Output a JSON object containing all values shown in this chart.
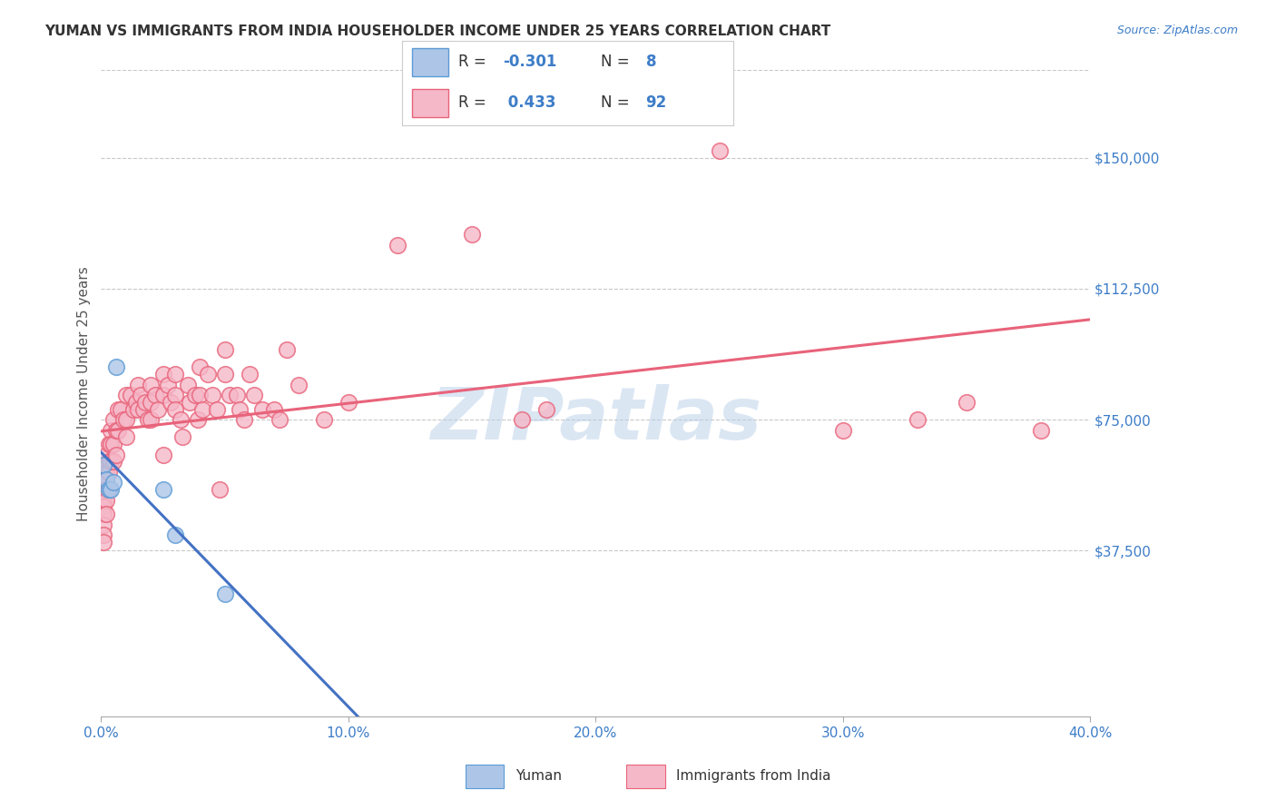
{
  "title": "YUMAN VS IMMIGRANTS FROM INDIA HOUSEHOLDER INCOME UNDER 25 YEARS CORRELATION CHART",
  "source": "Source: ZipAtlas.com",
  "ylabel": "Householder Income Under 25 years",
  "xlim": [
    0.0,
    0.4
  ],
  "ylim": [
    -10000,
    175000
  ],
  "plot_ylim": [
    0,
    175000
  ],
  "xtick_labels": [
    "0.0%",
    "10.0%",
    "20.0%",
    "30.0%",
    "40.0%"
  ],
  "xtick_vals": [
    0.0,
    0.1,
    0.2,
    0.3,
    0.4
  ],
  "ytick_labels": [
    "$37,500",
    "$75,000",
    "$112,500",
    "$150,000"
  ],
  "ytick_vals": [
    37500,
    75000,
    112500,
    150000
  ],
  "legend_labels": [
    "Yuman",
    "Immigrants from India"
  ],
  "yuman_color": "#adc6e8",
  "india_color": "#f5b8c8",
  "yuman_edge_color": "#5b9bd5",
  "india_edge_color": "#e8637a",
  "yuman_line_color": "#4472c4",
  "india_line_color": "#e8637a",
  "yuman_scatter": [
    [
      0.001,
      62000
    ],
    [
      0.002,
      58000
    ],
    [
      0.003,
      55000
    ],
    [
      0.004,
      55000
    ],
    [
      0.005,
      57000
    ],
    [
      0.006,
      90000
    ],
    [
      0.025,
      55000
    ],
    [
      0.03,
      42000
    ],
    [
      0.05,
      25000
    ]
  ],
  "india_scatter": [
    [
      0.001,
      55000
    ],
    [
      0.001,
      52000
    ],
    [
      0.001,
      50000
    ],
    [
      0.001,
      48000
    ],
    [
      0.001,
      45000
    ],
    [
      0.001,
      42000
    ],
    [
      0.001,
      40000
    ],
    [
      0.002,
      65000
    ],
    [
      0.002,
      60000
    ],
    [
      0.002,
      58000
    ],
    [
      0.002,
      55000
    ],
    [
      0.002,
      52000
    ],
    [
      0.002,
      48000
    ],
    [
      0.003,
      68000
    ],
    [
      0.003,
      63000
    ],
    [
      0.003,
      60000
    ],
    [
      0.003,
      55000
    ],
    [
      0.004,
      72000
    ],
    [
      0.004,
      68000
    ],
    [
      0.004,
      63000
    ],
    [
      0.005,
      75000
    ],
    [
      0.005,
      68000
    ],
    [
      0.005,
      63000
    ],
    [
      0.006,
      72000
    ],
    [
      0.006,
      65000
    ],
    [
      0.007,
      78000
    ],
    [
      0.007,
      72000
    ],
    [
      0.008,
      78000
    ],
    [
      0.009,
      75000
    ],
    [
      0.01,
      82000
    ],
    [
      0.01,
      75000
    ],
    [
      0.01,
      70000
    ],
    [
      0.012,
      82000
    ],
    [
      0.013,
      78000
    ],
    [
      0.014,
      80000
    ],
    [
      0.015,
      85000
    ],
    [
      0.015,
      78000
    ],
    [
      0.016,
      82000
    ],
    [
      0.017,
      78000
    ],
    [
      0.018,
      80000
    ],
    [
      0.019,
      75000
    ],
    [
      0.02,
      85000
    ],
    [
      0.02,
      80000
    ],
    [
      0.02,
      75000
    ],
    [
      0.022,
      82000
    ],
    [
      0.023,
      78000
    ],
    [
      0.025,
      88000
    ],
    [
      0.025,
      82000
    ],
    [
      0.025,
      65000
    ],
    [
      0.027,
      85000
    ],
    [
      0.028,
      80000
    ],
    [
      0.03,
      88000
    ],
    [
      0.03,
      82000
    ],
    [
      0.03,
      78000
    ],
    [
      0.032,
      75000
    ],
    [
      0.033,
      70000
    ],
    [
      0.035,
      85000
    ],
    [
      0.036,
      80000
    ],
    [
      0.038,
      82000
    ],
    [
      0.039,
      75000
    ],
    [
      0.04,
      90000
    ],
    [
      0.04,
      82000
    ],
    [
      0.041,
      78000
    ],
    [
      0.043,
      88000
    ],
    [
      0.045,
      82000
    ],
    [
      0.047,
      78000
    ],
    [
      0.048,
      55000
    ],
    [
      0.05,
      95000
    ],
    [
      0.05,
      88000
    ],
    [
      0.052,
      82000
    ],
    [
      0.055,
      82000
    ],
    [
      0.056,
      78000
    ],
    [
      0.058,
      75000
    ],
    [
      0.06,
      88000
    ],
    [
      0.062,
      82000
    ],
    [
      0.065,
      78000
    ],
    [
      0.07,
      78000
    ],
    [
      0.072,
      75000
    ],
    [
      0.075,
      95000
    ],
    [
      0.08,
      85000
    ],
    [
      0.09,
      75000
    ],
    [
      0.1,
      80000
    ],
    [
      0.12,
      125000
    ],
    [
      0.15,
      128000
    ],
    [
      0.17,
      75000
    ],
    [
      0.18,
      78000
    ],
    [
      0.25,
      152000
    ],
    [
      0.3,
      72000
    ],
    [
      0.33,
      75000
    ],
    [
      0.35,
      80000
    ],
    [
      0.38,
      72000
    ]
  ],
  "background_color": "#ffffff",
  "grid_color": "#c8c8c8",
  "watermark_text": "ZIPatlas",
  "watermark_color": "#b8cfe8"
}
